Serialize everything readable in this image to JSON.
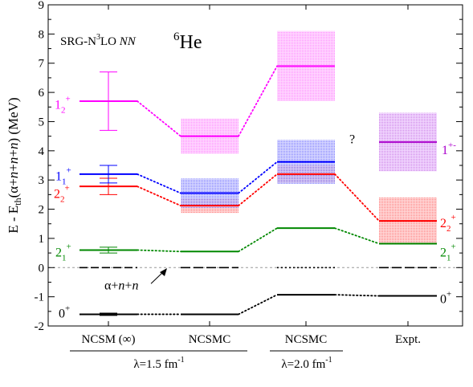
{
  "chart_data": {
    "type": "level-scheme",
    "nucleus": {
      "mass": "6",
      "symbol": "He"
    },
    "interaction_label": {
      "pre": "SRG-N",
      "sup": "3",
      "post": "LO ",
      "ital": "NN"
    },
    "ylabel": {
      "a": "E - E",
      "sub": "th",
      "b": "(α+",
      "n1": "n",
      "c": "+",
      "n2": "n",
      "d": "+",
      "n3": "n",
      "e": ") (MeV)"
    },
    "ylim": [
      -2,
      9
    ],
    "yticks": [
      "-2",
      "-1",
      "0",
      "1",
      "2",
      "3",
      "4",
      "5",
      "6",
      "7",
      "8",
      "9"
    ],
    "columns": [
      {
        "label": "NCSM (∞)",
        "group": 0
      },
      {
        "label": "NCSMC",
        "group": 0
      },
      {
        "label": "NCSMC",
        "group": 1
      },
      {
        "label": "Expt.",
        "group": 2
      }
    ],
    "lambda_labels": [
      {
        "lam": "λ",
        "rest": "=1.5 fm",
        "sup": "-1"
      },
      {
        "lam": "λ",
        "rest": "=2.0 fm",
        "sup": "-1"
      }
    ],
    "threshold": {
      "energy": 0.0,
      "label": {
        "a": "α+",
        "n1": "n",
        "b": "+",
        "n2": "n"
      }
    },
    "states": [
      {
        "key": "0+",
        "color": "#000000",
        "levels": [
          {
            "col": 0,
            "e": -1.6,
            "err": 0.04
          },
          {
            "col": 1,
            "e": -1.6
          },
          {
            "col": 2,
            "e": -0.93
          },
          {
            "col": 3,
            "e": -0.97
          }
        ],
        "left_label": {
          "j": "0",
          "sub": "",
          "par": "+"
        },
        "right_label": {
          "j": "0",
          "sub": "",
          "par": "+"
        }
      },
      {
        "key": "2_1+",
        "color": "#008800",
        "levels": [
          {
            "col": 0,
            "e": 0.6,
            "err": 0.1
          },
          {
            "col": 1,
            "e": 0.55
          },
          {
            "col": 2,
            "e": 1.35
          },
          {
            "col": 3,
            "e": 0.82
          }
        ],
        "left_label": {
          "j": "2",
          "sub": "1",
          "par": "+"
        },
        "right_label": {
          "j": "2",
          "sub": "1",
          "par": "+"
        }
      },
      {
        "key": "2_2+",
        "color": "#ff0000",
        "levels": [
          {
            "col": 0,
            "e": 2.78,
            "err": 0.28
          },
          {
            "col": 1,
            "e": 2.12,
            "w": 0.5
          },
          {
            "col": 2,
            "e": 3.2,
            "w": 0.6
          },
          {
            "col": 3,
            "e": 1.6,
            "w": 1.6
          }
        ],
        "left_label": {
          "j": "2",
          "sub": "2",
          "par": "+"
        },
        "right_label": {
          "j": "2",
          "sub": "2",
          "par": "+"
        }
      },
      {
        "key": "1_1+",
        "color": "#0000ff",
        "levels": [
          {
            "col": 0,
            "e": 3.2,
            "err": 0.3
          },
          {
            "col": 1,
            "e": 2.55,
            "w": 1.0
          },
          {
            "col": 2,
            "e": 3.62,
            "w": 1.5
          }
        ],
        "left_label": {
          "j": "1",
          "sub": "1",
          "par": "+"
        }
      },
      {
        "key": "1_2+",
        "color": "#ff00ff",
        "levels": [
          {
            "col": 0,
            "e": 5.7,
            "err": 1.0
          },
          {
            "col": 1,
            "e": 4.5,
            "w": 1.2
          },
          {
            "col": 2,
            "e": 6.9,
            "w": 2.4
          }
        ],
        "left_label": {
          "j": "1",
          "sub": "2",
          "par": "+"
        }
      },
      {
        "key": "1+-",
        "color": "#aa00cc",
        "levels": [
          {
            "col": 3,
            "e": 4.3,
            "w": 2.0
          }
        ],
        "right_label": {
          "j": "1",
          "sub": "",
          "par": "+-"
        }
      }
    ],
    "question_mark": "?"
  }
}
